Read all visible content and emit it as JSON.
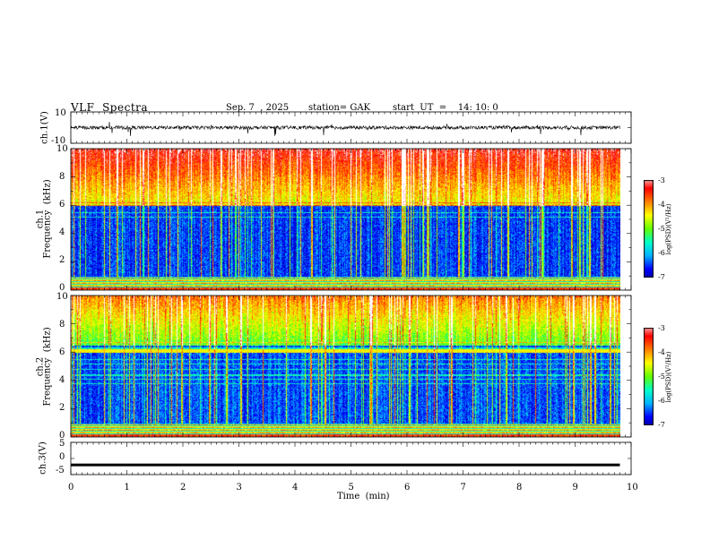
{
  "header": {
    "title": "VLF  Spectra",
    "date": "Sep. 7  , 2025",
    "station": "station= GAK",
    "start": "start  UT  =    14: 10: 0"
  },
  "chart_data": [
    {
      "type": "line",
      "name": "ch1-waveform",
      "ylabel": "ch.1(V)",
      "ylim": [
        -10,
        10
      ],
      "yticks": [
        "10",
        "-10"
      ]
    },
    {
      "type": "heatmap",
      "name": "ch1-spectrogram",
      "ylabel": "ch.1\nFrequency  (kHz)",
      "ylabel_line1": "ch.1",
      "ylabel_line2": "Frequency  (kHz)",
      "ylim": [
        0,
        10
      ],
      "yticks": [
        "0",
        "2",
        "4",
        "6",
        "8",
        "10"
      ],
      "colorbar": {
        "label": "log(PSD)(V²/Hz)",
        "range": [
          -7,
          -3
        ],
        "ticks": [
          "-3",
          "-4",
          "-5",
          "-6",
          "-7"
        ]
      }
    },
    {
      "type": "heatmap",
      "name": "ch2-spectrogram",
      "ylabel_line1": "ch.2",
      "ylabel_line2": "Frequency  (kHz)",
      "ylim": [
        0,
        10
      ],
      "yticks": [
        "0",
        "2",
        "4",
        "6",
        "8",
        "10"
      ],
      "colorbar": {
        "label": "log(PSD)(V²/Hz)",
        "range": [
          -7,
          -3
        ],
        "ticks": [
          "-3",
          "-4",
          "-5",
          "-6",
          "-7"
        ]
      }
    },
    {
      "type": "line",
      "name": "ch3-waveform",
      "ylabel": "ch.3(V)",
      "ylim": [
        -5,
        5
      ],
      "yticks": [
        "5",
        "0",
        "-5"
      ],
      "level": -2
    }
  ],
  "xaxis": {
    "label": "Time  (min)",
    "range": [
      0,
      10
    ],
    "data_end": 9.8,
    "ticks": [
      "0",
      "1",
      "2",
      "3",
      "4",
      "5",
      "6",
      "7",
      "8",
      "9",
      "10"
    ]
  },
  "colors": {
    "axis": "#000000",
    "colormap": [
      "#000080",
      "#0000ff",
      "#00b4ff",
      "#00ffc8",
      "#64ff00",
      "#ffff00",
      "#ff8000",
      "#ff0000",
      "#ffffff"
    ]
  }
}
